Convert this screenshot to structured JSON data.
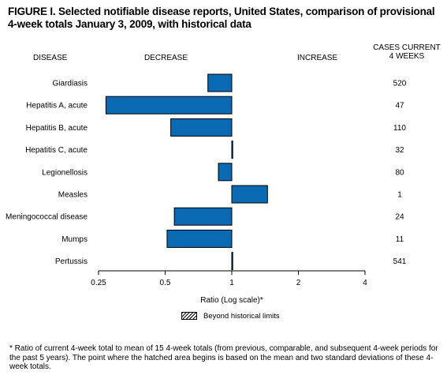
{
  "title": "FIGURE I. Selected notifiable disease reports, United States, comparison of provisional 4-week totals January 3, 2009, with historical data",
  "headers": {
    "disease": "DISEASE",
    "decrease": "DECREASE",
    "increase": "INCREASE",
    "cases": "CASES CURRENT",
    "cases_sub": "4 WEEKS"
  },
  "legend": {
    "label": "Beyond historical limits"
  },
  "footnote": "* Ratio of current 4-week total to mean of 15 4-week totals (from previous, comparable, and subsequent 4-week periods for the past 5 years). The point where the hatched area begins is based on the mean and two standard deviations of these 4-week totals.",
  "chart_data": {
    "type": "bar",
    "orientation": "horizontal",
    "xlabel": "Ratio (Log scale)*",
    "x_scale": "log2",
    "xlim": [
      0.25,
      4
    ],
    "baseline": 1,
    "x_ticks": [
      0.25,
      0.5,
      1,
      2,
      4
    ],
    "x_tick_labels": [
      "0.25",
      "0.5",
      "1",
      "2",
      "4"
    ],
    "bar_color": "#0a6ab4",
    "categories": [
      "Giardiasis",
      "Hepatitis A, acute",
      "Hepatitis B, acute",
      "Hepatitis C, acute",
      "Legionellosis",
      "Measles",
      "Meningococcal disease",
      "Mumps",
      "Pertussis"
    ],
    "values": [
      0.78,
      0.27,
      0.53,
      1.01,
      0.87,
      1.45,
      0.55,
      0.51,
      1.01
    ],
    "cases_current_4_weeks": [
      "520",
      "47",
      "110",
      "32",
      "80",
      "1",
      "24",
      "11",
      "541"
    ]
  }
}
